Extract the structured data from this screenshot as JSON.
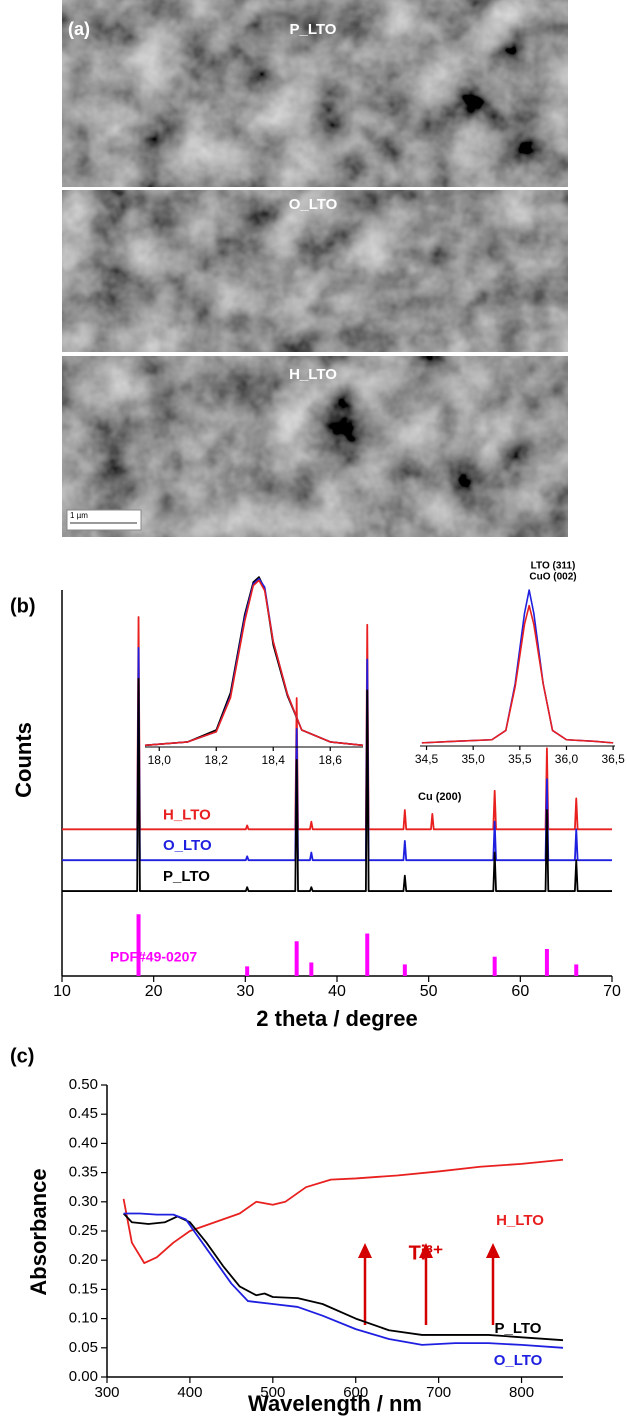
{
  "panel_a": {
    "label": "(a)",
    "images": [
      {
        "label": "P_LTO"
      },
      {
        "label": "O_LTO"
      },
      {
        "label": "H_LTO"
      }
    ],
    "scale_bar": "1 µm"
  },
  "chart_data": [
    {
      "type": "line",
      "panel_label": "(b)",
      "xlabel": "2 theta / degree",
      "ylabel": "Counts",
      "x": [
        10,
        18.2,
        18.35,
        18.5,
        30.05,
        30.2,
        30.35,
        35.45,
        35.6,
        35.75,
        37.05,
        37.2,
        37.35,
        43.15,
        43.3,
        43.45,
        47.25,
        47.4,
        47.55,
        50.25,
        50.4,
        50.55,
        57.05,
        57.2,
        57.35,
        62.75,
        62.9,
        63.05,
        65.95,
        66.1,
        66.25,
        70
      ],
      "xlim": [
        10,
        70
      ],
      "xticks": [
        10,
        20,
        30,
        40,
        50,
        60,
        70
      ],
      "ylim": [
        0,
        100
      ],
      "series": [
        {
          "name": "H_LTO",
          "color": "#e8201f",
          "values": [
            38,
            38,
            93,
            38,
            38,
            39,
            38,
            38,
            72,
            38,
            38,
            40,
            38,
            38,
            91,
            38,
            38,
            43,
            38,
            38,
            42,
            38,
            38,
            48,
            38,
            38,
            59,
            38,
            38,
            46,
            38,
            38
          ]
        },
        {
          "name": "O_LTO",
          "color": "#1f1fe0",
          "values": [
            30,
            30,
            85,
            30,
            30,
            31,
            30,
            30,
            64,
            30,
            30,
            32,
            30,
            30,
            82,
            30,
            30,
            35,
            30,
            30,
            30,
            30,
            30,
            40,
            30,
            30,
            51,
            30,
            30,
            38,
            30,
            30
          ]
        },
        {
          "name": "P_LTO",
          "color": "#000000",
          "values": [
            22,
            22,
            77,
            22,
            22,
            23,
            22,
            22,
            56,
            22,
            22,
            23,
            22,
            22,
            74,
            22,
            22,
            26,
            22,
            22,
            22,
            22,
            22,
            32,
            22,
            22,
            43,
            22,
            22,
            30,
            22,
            22
          ]
        }
      ],
      "reference": {
        "name": "PDF#49-0207",
        "color": "#ff00ff",
        "x": [
          18.35,
          30.2,
          35.6,
          37.2,
          43.3,
          47.4,
          57.2,
          62.9,
          66.1
        ],
        "values": [
          16,
          2.5,
          9,
          3.5,
          11,
          3,
          5,
          7,
          3
        ]
      },
      "annotations": [
        "Cu (200)"
      ]
    },
    {
      "type": "line",
      "x": [
        17.95,
        18.1,
        18.2,
        18.25,
        18.3,
        18.33,
        18.35,
        18.37,
        18.4,
        18.45,
        18.5,
        18.6,
        18.715
      ],
      "xlim": [
        17.95,
        18.715
      ],
      "xticks": [
        {
          "value": 18,
          "label": "18,0"
        },
        {
          "value": 18.2,
          "label": "18,2"
        },
        {
          "value": 18.4,
          "label": "18,4"
        },
        {
          "value": 18.6,
          "label": "18,6"
        }
      ],
      "ylim": [
        0,
        1
      ],
      "series": [
        {
          "color": "#000000",
          "values": [
            0.01,
            0.03,
            0.1,
            0.32,
            0.78,
            0.97,
            1.0,
            0.93,
            0.6,
            0.3,
            0.1,
            0.03,
            0.01
          ]
        },
        {
          "color": "#1f1fe0",
          "values": [
            0.01,
            0.03,
            0.09,
            0.3,
            0.76,
            0.96,
            0.99,
            0.94,
            0.62,
            0.31,
            0.1,
            0.03,
            0.01
          ]
        },
        {
          "color": "#e8201f",
          "values": [
            0.01,
            0.03,
            0.09,
            0.29,
            0.74,
            0.95,
            0.98,
            0.92,
            0.62,
            0.31,
            0.1,
            0.03,
            0.01
          ]
        }
      ]
    },
    {
      "type": "line",
      "x": [
        34.45,
        34.8,
        35.2,
        35.35,
        35.45,
        35.55,
        35.6,
        35.65,
        35.75,
        35.85,
        36.0,
        36.3,
        36.5
      ],
      "xlim": [
        34.43,
        36.52
      ],
      "xticks": [
        {
          "value": 34.5,
          "label": "34,5"
        },
        {
          "value": 35,
          "label": "35,0"
        },
        {
          "value": 35.5,
          "label": "35,5"
        },
        {
          "value": 36,
          "label": "36,0"
        },
        {
          "value": 36.5,
          "label": "36,5"
        }
      ],
      "ylim": [
        0,
        1
      ],
      "series": [
        {
          "color": "#1f1fe0",
          "values": [
            0.02,
            0.03,
            0.04,
            0.1,
            0.4,
            0.85,
            1.0,
            0.85,
            0.4,
            0.1,
            0.04,
            0.03,
            0.02
          ]
        },
        {
          "color": "#e8201f",
          "values": [
            0.02,
            0.03,
            0.04,
            0.1,
            0.38,
            0.78,
            0.9,
            0.78,
            0.4,
            0.1,
            0.04,
            0.03,
            0.02
          ]
        }
      ],
      "annotations": [
        "LTO (311)",
        "CuO (002)"
      ]
    },
    {
      "type": "line",
      "panel_label": "(c)",
      "xlabel": "Wavelength / nm",
      "ylabel": "Absorbance",
      "xlim": [
        300,
        850
      ],
      "xticks": [
        300,
        400,
        500,
        600,
        700,
        800
      ],
      "ylim": [
        0,
        0.5
      ],
      "yticks": [
        {
          "value": 0,
          "label": "0.00"
        },
        0.05,
        {
          "value": 0.1,
          "label": "0.10"
        },
        0.15,
        {
          "value": 0.2,
          "label": "0.20"
        },
        0.25,
        {
          "value": 0.3,
          "label": "0.30"
        },
        0.35,
        {
          "value": 0.4,
          "label": "0.40"
        },
        0.45,
        {
          "value": 0.5,
          "label": "0.50"
        }
      ],
      "series": [
        {
          "name": "H_LTO",
          "color": "#e8201f",
          "x": [
            320,
            330,
            345,
            360,
            380,
            400,
            430,
            460,
            480,
            500,
            515,
            540,
            570,
            600,
            650,
            700,
            750,
            800,
            850
          ],
          "values": [
            0.305,
            0.23,
            0.195,
            0.205,
            0.23,
            0.25,
            0.265,
            0.28,
            0.3,
            0.295,
            0.3,
            0.325,
            0.338,
            0.34,
            0.345,
            0.352,
            0.36,
            0.365,
            0.372
          ]
        },
        {
          "name": "P_LTO",
          "color": "#000000",
          "x": [
            320,
            330,
            350,
            370,
            385,
            400,
            420,
            440,
            460,
            480,
            490,
            500,
            530,
            560,
            600,
            640,
            680,
            720,
            760,
            800,
            850
          ],
          "values": [
            0.28,
            0.265,
            0.262,
            0.265,
            0.275,
            0.265,
            0.23,
            0.19,
            0.155,
            0.14,
            0.143,
            0.137,
            0.135,
            0.125,
            0.1,
            0.08,
            0.072,
            0.072,
            0.072,
            0.068,
            0.063
          ]
        },
        {
          "name": "O_LTO",
          "color": "#1f1fe0",
          "x": [
            320,
            340,
            360,
            380,
            395,
            410,
            430,
            450,
            470,
            500,
            530,
            560,
            600,
            640,
            680,
            720,
            760,
            800,
            850
          ],
          "values": [
            0.28,
            0.28,
            0.278,
            0.278,
            0.27,
            0.24,
            0.2,
            0.16,
            0.13,
            0.125,
            0.12,
            0.105,
            0.082,
            0.065,
            0.055,
            0.058,
            0.058,
            0.055,
            0.05
          ]
        }
      ],
      "annotations": [
        "Ti³⁺"
      ]
    }
  ]
}
